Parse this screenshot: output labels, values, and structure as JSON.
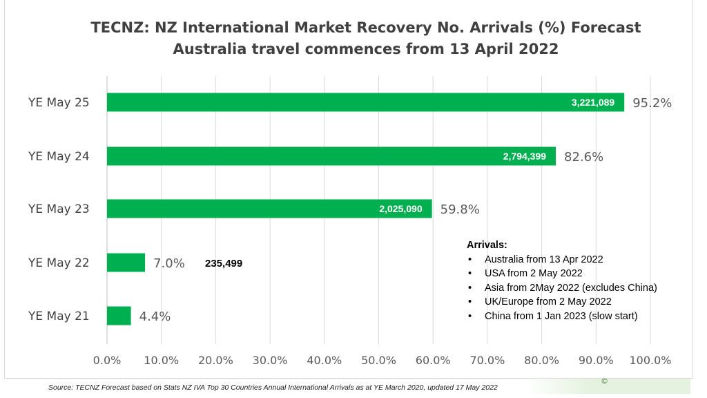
{
  "chart_data": {
    "type": "bar",
    "orientation": "horizontal",
    "title": "TECNZ: NZ International Market Recovery No. Arrivals (%) Forecast",
    "subtitle": "Australia travel commences from 13 April 2022",
    "categories": [
      "YE May 25",
      "YE May 24",
      "YE May 23",
      "YE May 22",
      "YE May 21"
    ],
    "values": [
      95.2,
      82.6,
      59.8,
      7.0,
      4.4
    ],
    "value_labels": [
      "95.2%",
      "82.6%",
      "59.8%",
      "7.0%",
      "4.4%"
    ],
    "arrivals": [
      "3,221,089",
      "2,794,399",
      "2,025,090",
      "235,499",
      ""
    ],
    "xlim": [
      0,
      100
    ],
    "x_ticks": [
      "0.0%",
      "10.0%",
      "20.0%",
      "30.0%",
      "40.0%",
      "50.0%",
      "60.0%",
      "70.0%",
      "80.0%",
      "90.0%",
      "100.0%"
    ],
    "grid": true,
    "bar_color": "#00b050"
  },
  "notes": {
    "title": "Arrivals:",
    "items": [
      "Australia from 13 Apr 2022",
      "USA from 2 May 2022",
      "Asia from 2May 2022 (excludes China)",
      "UK/Europe from 2 May 2022",
      "China from 1 Jan 2023 (slow start)"
    ]
  },
  "source": "Source: TECNZ Forecast based on Stats NZ IVA Top 30 Countries Annual International Arrivals as at YE March 2020, updated 17 May 2022",
  "corner_mark": "©"
}
